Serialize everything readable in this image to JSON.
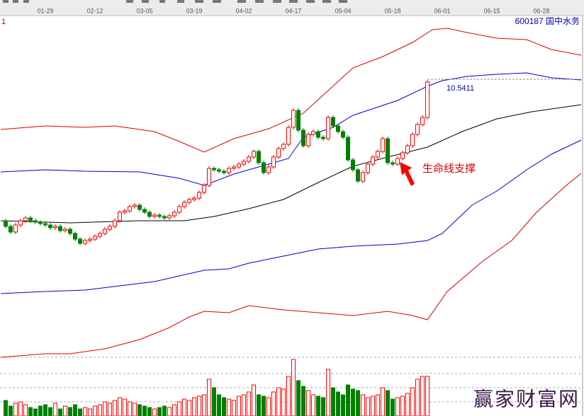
{
  "chart_data": {
    "type": "candlestick",
    "corner_label": "1",
    "title": "600187 国中水务",
    "annotation": "生命线支撑",
    "watermark": "赢家财富网",
    "price_line": 10.5411,
    "xlim": [
      -1.14,
      116.57
    ],
    "xticks": [
      {
        "value": 8,
        "label": "01-29"
      },
      {
        "value": 18,
        "label": "02-12"
      },
      {
        "value": 28,
        "label": "03-05"
      },
      {
        "value": 38,
        "label": "03-19"
      },
      {
        "value": 48,
        "label": "04-02"
      },
      {
        "value": 58,
        "label": "04-17"
      },
      {
        "value": 68,
        "label": "05-04"
      },
      {
        "value": 78,
        "label": "05-18"
      },
      {
        "value": 88,
        "label": "06-01"
      },
      {
        "value": 98,
        "label": "06-15"
      },
      {
        "value": 108,
        "label": "06-28"
      }
    ],
    "ylim": [
      2.68,
      12.5
    ],
    "up_color": "#ff0000",
    "down_color": "#008000",
    "x": [
      0,
      1,
      2,
      3,
      4,
      5,
      6,
      7,
      8,
      9,
      10,
      11,
      12,
      13,
      14,
      15,
      16,
      17,
      18,
      19,
      20,
      21,
      22,
      23,
      24,
      25,
      26,
      27,
      28,
      29,
      30,
      31,
      32,
      33,
      34,
      35,
      36,
      37,
      38,
      39,
      40,
      41,
      42,
      43,
      44,
      45,
      46,
      47,
      48,
      49,
      50,
      51,
      52,
      53,
      54,
      55,
      56,
      57,
      58,
      59,
      60,
      61,
      62,
      63,
      64,
      65,
      66,
      67,
      68,
      69,
      70,
      71,
      72,
      73,
      74,
      75,
      76,
      77,
      78,
      79,
      80,
      81,
      82,
      83,
      84,
      85
    ],
    "open": [
      6.54,
      6.38,
      6.22,
      6.42,
      6.54,
      6.62,
      6.54,
      6.5,
      6.46,
      6.42,
      6.34,
      6.38,
      6.26,
      6.3,
      6.18,
      6.02,
      5.9,
      5.98,
      6.02,
      6.1,
      6.18,
      6.3,
      6.38,
      6.54,
      6.78,
      6.82,
      6.94,
      6.98,
      6.86,
      6.78,
      6.66,
      6.7,
      6.66,
      6.62,
      6.68,
      6.78,
      6.94,
      7.06,
      7.14,
      7.18,
      7.34,
      7.54,
      8.02,
      7.98,
      7.94,
      7.9,
      8.02,
      8.06,
      8.14,
      8.22,
      8.34,
      8.5,
      8.18,
      7.9,
      8.06,
      8.34,
      8.58,
      8.7,
      9.18,
      9.66,
      9.1,
      8.66,
      8.98,
      9.06,
      8.9,
      8.86,
      9.46,
      9.22,
      9.06,
      8.9,
      8.26,
      7.98,
      7.66,
      7.9,
      8.14,
      8.34,
      8.5,
      8.86,
      8.18,
      8.14,
      8.3,
      8.46,
      8.66,
      8.98,
      9.26,
      9.46
    ],
    "high": [
      6.6,
      6.44,
      6.48,
      6.6,
      6.68,
      6.68,
      6.6,
      6.56,
      6.52,
      6.48,
      6.44,
      6.44,
      6.36,
      6.36,
      6.24,
      6.08,
      6.04,
      6.08,
      6.16,
      6.24,
      6.36,
      6.44,
      6.6,
      6.84,
      6.88,
      7.0,
      7.04,
      7.04,
      6.92,
      6.84,
      6.76,
      6.76,
      6.72,
      6.74,
      6.84,
      7.0,
      7.12,
      7.2,
      7.24,
      7.4,
      7.6,
      8.08,
      8.08,
      8.04,
      8.0,
      8.08,
      8.12,
      8.2,
      8.28,
      8.4,
      8.56,
      8.56,
      8.24,
      8.12,
      8.4,
      8.64,
      8.76,
      9.24,
      9.72,
      9.72,
      9.16,
      9.04,
      9.12,
      9.12,
      8.96,
      9.52,
      9.52,
      9.28,
      9.12,
      8.96,
      8.32,
      8.04,
      7.96,
      8.2,
      8.4,
      8.56,
      8.92,
      8.92,
      8.24,
      8.36,
      8.52,
      8.72,
      9.04,
      9.32,
      9.52,
      10.52
    ],
    "low": [
      6.32,
      6.16,
      6.16,
      6.36,
      6.48,
      6.48,
      6.44,
      6.4,
      6.36,
      6.28,
      6.28,
      6.2,
      6.2,
      6.12,
      5.96,
      5.84,
      5.84,
      5.92,
      5.96,
      6.04,
      6.12,
      6.24,
      6.32,
      6.48,
      6.72,
      6.76,
      6.88,
      6.8,
      6.72,
      6.6,
      6.6,
      6.6,
      6.56,
      6.56,
      6.62,
      6.72,
      6.88,
      7.0,
      7.08,
      7.12,
      7.28,
      7.48,
      7.92,
      7.88,
      7.84,
      7.84,
      7.96,
      8.0,
      8.08,
      8.16,
      8.28,
      8.12,
      7.84,
      7.84,
      8.0,
      8.28,
      8.52,
      8.64,
      9.12,
      9.04,
      8.6,
      8.6,
      8.92,
      8.84,
      8.8,
      8.8,
      9.16,
      9.0,
      8.84,
      8.2,
      7.92,
      7.6,
      7.6,
      7.84,
      8.08,
      8.28,
      8.44,
      8.12,
      8.08,
      8.08,
      8.24,
      8.4,
      8.6,
      8.92,
      9.2,
      9.4
    ],
    "close": [
      6.38,
      6.22,
      6.42,
      6.54,
      6.62,
      6.54,
      6.5,
      6.46,
      6.42,
      6.34,
      6.38,
      6.26,
      6.3,
      6.18,
      6.02,
      5.9,
      5.98,
      6.02,
      6.1,
      6.18,
      6.3,
      6.38,
      6.54,
      6.78,
      6.82,
      6.94,
      6.98,
      6.86,
      6.78,
      6.66,
      6.7,
      6.66,
      6.62,
      6.68,
      6.78,
      6.94,
      7.06,
      7.14,
      7.18,
      7.34,
      7.54,
      8.02,
      7.98,
      7.94,
      7.9,
      8.02,
      8.06,
      8.14,
      8.22,
      8.34,
      8.5,
      8.18,
      7.9,
      8.06,
      8.34,
      8.58,
      8.7,
      9.18,
      9.66,
      9.1,
      8.66,
      8.98,
      9.06,
      8.9,
      8.86,
      9.46,
      9.22,
      9.06,
      8.9,
      8.26,
      7.98,
      7.66,
      7.9,
      8.14,
      8.34,
      8.5,
      8.86,
      8.18,
      8.14,
      8.3,
      8.46,
      8.66,
      8.98,
      9.26,
      9.46,
      10.46
    ],
    "lines": [
      {
        "color": "#e00000",
        "x": [
          -1,
          8,
          16,
          22,
          30,
          35,
          40,
          46,
          53,
          60,
          65,
          70,
          76,
          82,
          86,
          89,
          93,
          99,
          105,
          110,
          116
        ],
        "values": [
          9.12,
          9.22,
          9.18,
          9.22,
          9.06,
          8.78,
          8.48,
          8.86,
          9.14,
          9.58,
          10.22,
          10.86,
          11.18,
          11.58,
          11.94,
          11.98,
          11.86,
          11.7,
          11.66,
          11.38,
          11.22
        ]
      },
      {
        "color": "#0000cc",
        "x": [
          -1,
          8,
          16,
          27,
          35,
          40,
          46,
          53,
          57,
          60,
          66,
          70,
          79,
          85,
          88,
          93,
          99,
          105,
          110,
          116
        ],
        "values": [
          7.92,
          7.98,
          7.94,
          7.92,
          7.74,
          7.54,
          7.86,
          8.14,
          8.3,
          8.9,
          9.18,
          9.52,
          9.94,
          10.34,
          10.5,
          10.62,
          10.68,
          10.72,
          10.58,
          10.52
        ]
      },
      {
        "color": "#000000",
        "x": [
          -1,
          13,
          27,
          36,
          42,
          49,
          56,
          63,
          70,
          77,
          85,
          92,
          99,
          106,
          116
        ],
        "values": [
          6.54,
          6.48,
          6.54,
          6.54,
          6.66,
          6.88,
          7.14,
          7.62,
          8.08,
          8.34,
          8.62,
          9.06,
          9.42,
          9.62,
          9.82
        ]
      },
      {
        "color": "#0000cc",
        "x": [
          -1,
          8,
          16,
          23,
          30,
          35,
          40,
          45,
          49,
          56,
          63,
          70,
          79,
          85,
          88,
          91,
          94,
          99,
          105,
          110,
          116
        ],
        "values": [
          4.48,
          4.54,
          4.58,
          4.7,
          4.82,
          4.98,
          5.14,
          5.18,
          5.34,
          5.54,
          5.74,
          5.82,
          5.88,
          5.98,
          6.18,
          6.58,
          6.98,
          7.38,
          7.98,
          8.42,
          8.82
        ]
      },
      {
        "color": "#e00000",
        "x": [
          -1,
          8,
          13,
          20,
          27,
          33,
          37,
          40,
          45,
          49,
          56,
          63,
          70,
          77,
          82,
          85,
          89,
          96,
          102,
          107,
          113,
          116
        ],
        "values": [
          2.68,
          2.78,
          2.78,
          2.92,
          3.18,
          3.52,
          3.82,
          3.98,
          3.94,
          4.14,
          4.02,
          3.94,
          3.86,
          3.98,
          3.86,
          3.74,
          4.54,
          5.38,
          5.98,
          6.78,
          7.54,
          7.88
        ]
      }
    ],
    "volume": {
      "ylim": [
        0,
        84
      ],
      "yticks": [
        20,
        40,
        60,
        83
      ],
      "values": [
        22,
        14,
        18,
        20,
        16,
        12,
        10,
        14,
        16,
        12,
        18,
        10,
        14,
        12,
        16,
        10,
        12,
        10,
        14,
        16,
        20,
        18,
        22,
        26,
        24,
        20,
        18,
        16,
        14,
        12,
        10,
        12,
        14,
        12,
        16,
        20,
        24,
        22,
        26,
        28,
        30,
        52,
        40,
        30,
        26,
        24,
        22,
        28,
        30,
        34,
        44,
        30,
        28,
        26,
        34,
        40,
        38,
        56,
        80,
        50,
        42,
        36,
        30,
        28,
        26,
        66,
        40,
        34,
        30,
        44,
        38,
        36,
        30,
        26,
        28,
        30,
        40,
        36,
        24,
        26,
        28,
        32,
        40,
        52,
        56,
        56
      ]
    }
  }
}
